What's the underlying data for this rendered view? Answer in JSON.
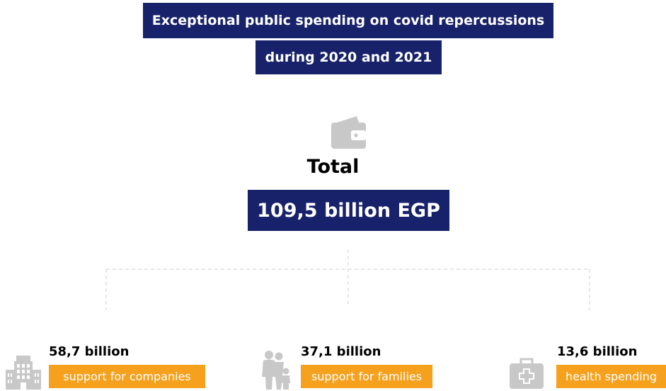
{
  "header": {
    "title_line1": "Exceptional public spending on covid repercussions",
    "title_line2": "during 2020 and 2021"
  },
  "total": {
    "label": "Total",
    "value": "109,5 billion EGP",
    "icon": "wallet-icon"
  },
  "breakdown": [
    {
      "amount": "58,7 billion",
      "label": "support for companies",
      "icon": "building-icon"
    },
    {
      "amount": "37,1 billion",
      "label": "support for families",
      "icon": "family-icon"
    },
    {
      "amount": "13,6 billion",
      "label": "health spending",
      "icon": "medical-kit-icon"
    }
  ],
  "colors": {
    "navy": "#18226a",
    "orange": "#f6a11e",
    "icon_gray": "#c8c8c8",
    "connector_gray": "#cccccc"
  }
}
